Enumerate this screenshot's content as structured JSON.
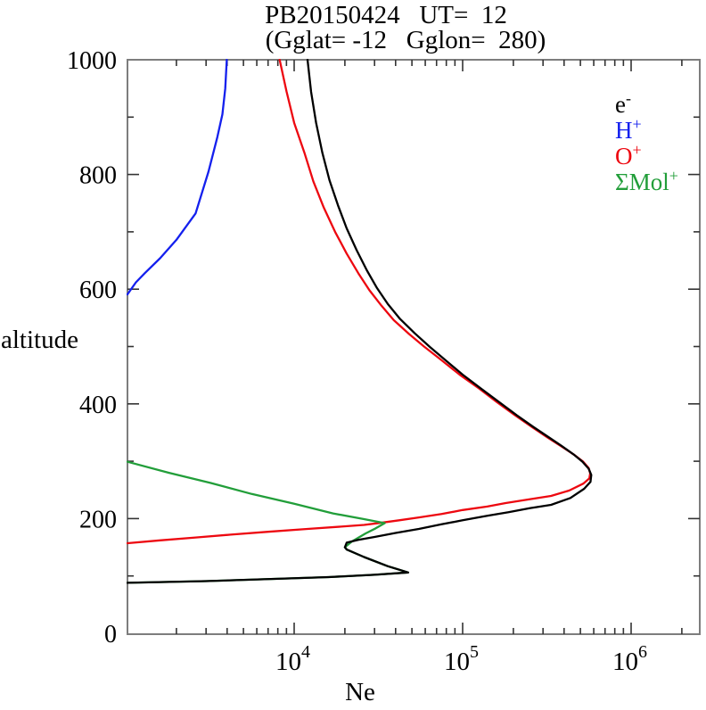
{
  "header": {
    "title_line1": "PB20150424   UT=  12",
    "title_line2": "(Gglat= -12   Gglon=  280)"
  },
  "axes": {
    "x_label": "Ne",
    "y_label": "altitude"
  },
  "legend": {
    "items": [
      {
        "base": "e",
        "sup": "-",
        "color": "#000000"
      },
      {
        "base": "H",
        "sup": "+",
        "color": "#1420ee"
      },
      {
        "base": "O",
        "sup": "+",
        "color": "#ed0810"
      },
      {
        "base": "ΣMol",
        "sup": "+",
        "color": "#229e3a"
      }
    ]
  },
  "chart_data": {
    "type": "line",
    "title": "PB20150424 UT= 12 (Gglat= -12 Gglon= 280)",
    "xlabel": "Ne",
    "ylabel": "altitude",
    "x_scale": "log",
    "x_range": [
      1000,
      2550000
    ],
    "y_range": [
      0,
      1000
    ],
    "grid": false,
    "legend_position": "upper right",
    "frame_color": "#7d7d7d",
    "tick_color": "#333333",
    "x_major_ticks": [
      {
        "value": 10000,
        "label_base": "10",
        "label_exp": "4"
      },
      {
        "value": 100000,
        "label_base": "10",
        "label_exp": "5"
      },
      {
        "value": 1000000,
        "label_base": "10",
        "label_exp": "6"
      }
    ],
    "x_minor_multipliers": [
      2,
      3,
      4,
      5,
      6,
      7,
      8,
      9
    ],
    "x_decades": [
      3,
      4,
      5,
      6
    ],
    "y_major_tick_step": 200,
    "y_minor_tick_step": 100,
    "y_tick_labels": [
      {
        "value": 1000,
        "label": "1000"
      },
      {
        "value": 800,
        "label": "800"
      },
      {
        "value": 600,
        "label": "600"
      },
      {
        "value": 400,
        "label": "400"
      },
      {
        "value": 200,
        "label": "200"
      },
      {
        "value": 0,
        "label": "0"
      }
    ],
    "series": [
      {
        "name": "e-",
        "color": "#000000",
        "points": [
          [
            1000,
            88
          ],
          [
            3000,
            91
          ],
          [
            8000,
            95
          ],
          [
            16000,
            98
          ],
          [
            30000,
            102
          ],
          [
            47500,
            106
          ],
          [
            36000,
            117
          ],
          [
            26000,
            133
          ],
          [
            20500,
            146
          ],
          [
            20000,
            150
          ],
          [
            20500,
            158
          ],
          [
            24000,
            163
          ],
          [
            30000,
            168
          ],
          [
            40000,
            175
          ],
          [
            55000,
            182
          ],
          [
            75000,
            190
          ],
          [
            100000,
            197
          ],
          [
            140000,
            205
          ],
          [
            187000,
            211
          ],
          [
            250000,
            218
          ],
          [
            335000,
            224
          ],
          [
            436000,
            236
          ],
          [
            526000,
            252
          ],
          [
            574000,
            264
          ],
          [
            580000,
            276
          ],
          [
            560000,
            287
          ],
          [
            515000,
            299
          ],
          [
            455000,
            312
          ],
          [
            385000,
            327
          ],
          [
            320000,
            343
          ],
          [
            262000,
            360
          ],
          [
            210000,
            380
          ],
          [
            165000,
            403
          ],
          [
            128000,
            427
          ],
          [
            100000,
            451
          ],
          [
            80000,
            475
          ],
          [
            64000,
            499
          ],
          [
            52000,
            523
          ],
          [
            42500,
            548
          ],
          [
            36000,
            574
          ],
          [
            31000,
            602
          ],
          [
            27000,
            633
          ],
          [
            23500,
            668
          ],
          [
            20500,
            706
          ],
          [
            18200,
            746
          ],
          [
            16200,
            790
          ],
          [
            14700,
            838
          ],
          [
            13500,
            890
          ],
          [
            12600,
            944
          ],
          [
            12000,
            1000
          ]
        ]
      },
      {
        "name": "H+",
        "color": "#1420ee",
        "points": [
          [
            1000,
            591
          ],
          [
            1150,
            612
          ],
          [
            1300,
            628
          ],
          [
            1600,
            654
          ],
          [
            2000,
            686
          ],
          [
            2600,
            732
          ],
          [
            3100,
            805
          ],
          [
            3500,
            865
          ],
          [
            3750,
            905
          ],
          [
            3900,
            950
          ],
          [
            3980,
            1000
          ]
        ]
      },
      {
        "name": "O+",
        "color": "#ed0810",
        "points": [
          [
            1000,
            157
          ],
          [
            1600,
            162
          ],
          [
            2600,
            167
          ],
          [
            4200,
            172
          ],
          [
            7000,
            177
          ],
          [
            12000,
            182
          ],
          [
            19000,
            186
          ],
          [
            26000,
            189
          ],
          [
            32500,
            192.5
          ],
          [
            42000,
            197
          ],
          [
            55000,
            202
          ],
          [
            75000,
            208
          ],
          [
            100000,
            215
          ],
          [
            140000,
            221
          ],
          [
            180000,
            227
          ],
          [
            240000,
            233
          ],
          [
            335000,
            239.5
          ],
          [
            430000,
            249
          ],
          [
            520000,
            261
          ],
          [
            565000,
            270
          ],
          [
            572000,
            279
          ],
          [
            560000,
            288
          ],
          [
            520000,
            299
          ],
          [
            460000,
            311
          ],
          [
            390000,
            325
          ],
          [
            320000,
            341
          ],
          [
            260000,
            359
          ],
          [
            205000,
            380
          ],
          [
            160000,
            403
          ],
          [
            125000,
            427
          ],
          [
            96000,
            451
          ],
          [
            75000,
            476
          ],
          [
            59000,
            500
          ],
          [
            48000,
            522
          ],
          [
            39000,
            546
          ],
          [
            33000,
            571
          ],
          [
            28000,
            598
          ],
          [
            24000,
            628
          ],
          [
            20500,
            662
          ],
          [
            17500,
            700
          ],
          [
            15000,
            742
          ],
          [
            13000,
            788
          ],
          [
            11500,
            838
          ],
          [
            10000,
            890
          ],
          [
            9000,
            945
          ],
          [
            8200,
            1000
          ]
        ]
      },
      {
        "name": "Mol+",
        "color": "#229e3a",
        "points": [
          [
            1000,
            299
          ],
          [
            1800,
            280
          ],
          [
            3200,
            262
          ],
          [
            5600,
            243
          ],
          [
            10000,
            226
          ],
          [
            17000,
            209
          ],
          [
            26000,
            199
          ],
          [
            34500,
            192
          ],
          [
            30500,
            183
          ],
          [
            26500,
            174
          ],
          [
            22000,
            160
          ],
          [
            20000,
            150
          ],
          [
            20500,
            146
          ],
          [
            26000,
            133
          ],
          [
            36000,
            117
          ],
          [
            47500,
            106
          ],
          [
            30000,
            102
          ],
          [
            16000,
            98
          ],
          [
            8000,
            95
          ],
          [
            3000,
            91
          ],
          [
            1000,
            88
          ]
        ]
      }
    ]
  }
}
